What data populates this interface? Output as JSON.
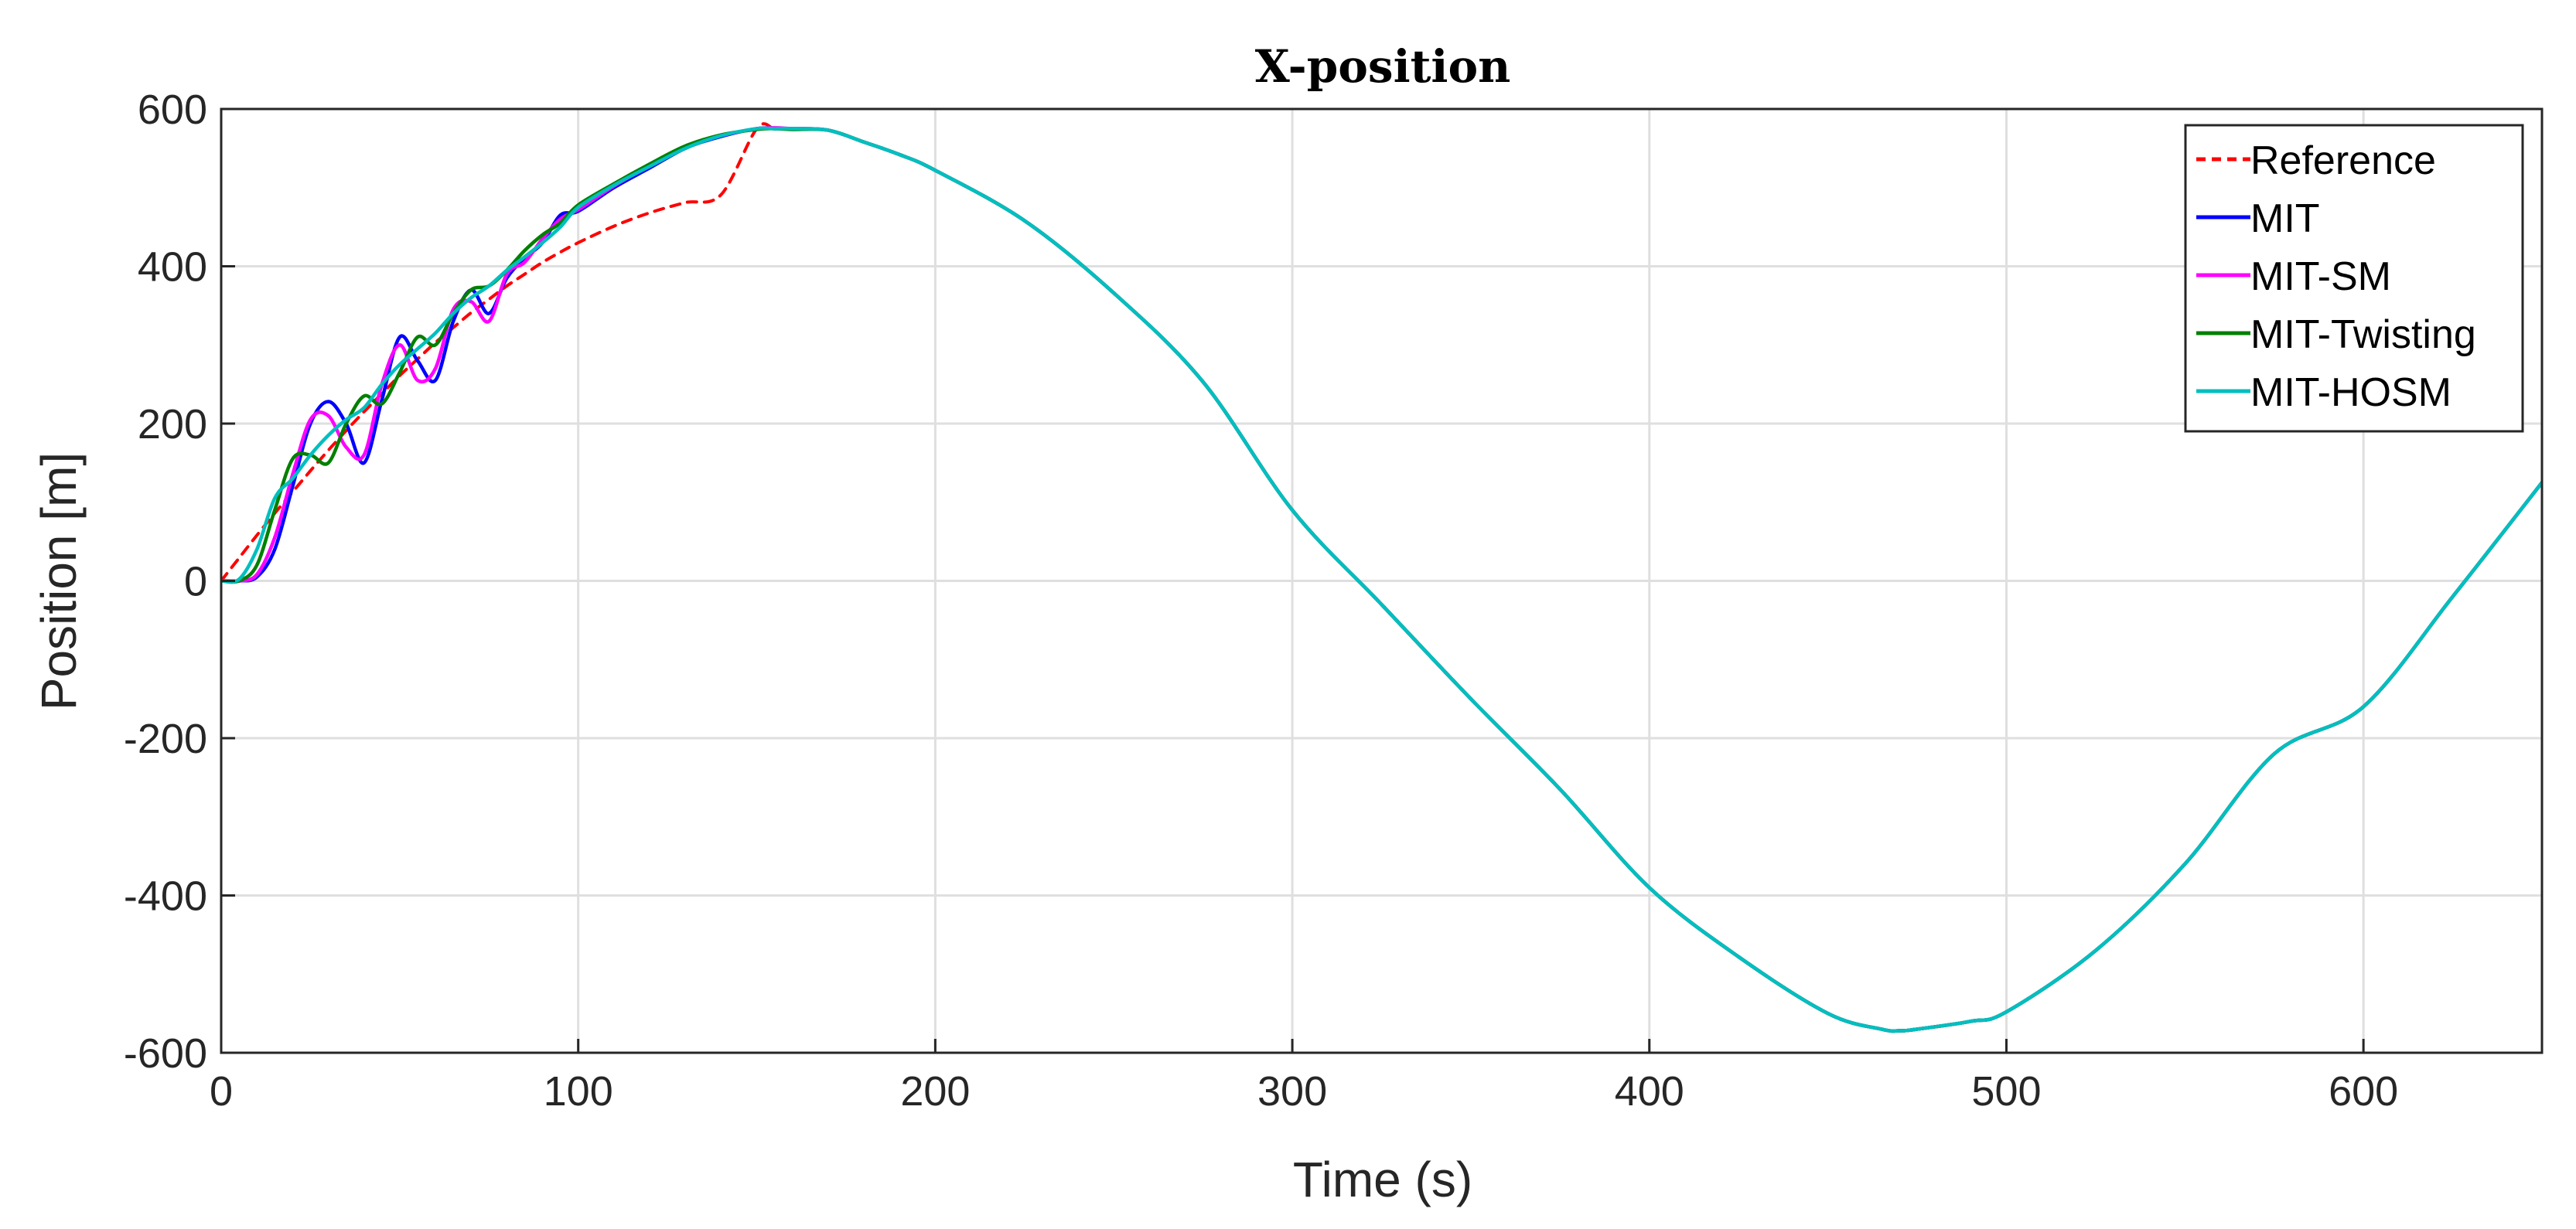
{
  "chart_data": {
    "type": "line",
    "title": "X-position",
    "xlabel": "Time (s)",
    "ylabel": "Position [m]",
    "xlim": [
      0,
      650
    ],
    "ylim": [
      -600,
      600
    ],
    "grid": true,
    "legend_position": "top-right",
    "x_ticks": [
      "0",
      "100",
      "200",
      "300",
      "400",
      "500",
      "600"
    ],
    "y_ticks": [
      "-600",
      "-400",
      "-200",
      "0",
      "200",
      "400",
      "600"
    ],
    "x_tick_values": [
      0,
      100,
      200,
      300,
      400,
      500,
      600
    ],
    "y_tick_values": [
      -600,
      -400,
      -200,
      0,
      200,
      400,
      600
    ],
    "x": [
      0,
      5,
      10,
      15,
      20,
      25,
      30,
      35,
      40,
      45,
      50,
      55,
      60,
      65,
      70,
      75,
      80,
      85,
      90,
      95,
      100,
      110,
      120,
      130,
      140,
      150,
      155,
      160,
      170,
      180,
      190,
      200,
      225,
      250,
      275,
      300,
      325,
      350,
      375,
      400,
      425,
      450,
      465,
      470,
      475,
      490,
      500,
      525,
      550,
      575,
      600,
      625,
      650
    ],
    "series": [
      {
        "name": "Reference",
        "color": "#ff0000",
        "style": "dashed",
        "values": [
          0,
          29,
          58,
          86,
          113,
          140,
          166,
          191,
          215,
          238,
          261,
          282,
          303,
          322,
          341,
          358,
          375,
          390,
          405,
          418,
          430,
          451,
          468,
          481,
          491,
          575,
          575,
          575,
          573,
          558,
          542,
          522,
          458,
          366,
          253,
          90,
          -30,
          -150,
          -265,
          -390,
          -478,
          -550,
          -570,
          -572,
          -570,
          -560,
          -548,
          -470,
          -360,
          -220,
          -160,
          -20,
          125
        ]
      },
      {
        "name": "MIT",
        "color": "#0000ff",
        "style": "solid",
        "values": [
          0,
          0,
          5,
          40,
          120,
          200,
          228,
          200,
          150,
          230,
          310,
          280,
          255,
          330,
          370,
          340,
          385,
          410,
          430,
          465,
          470,
          500,
          525,
          550,
          565,
          575,
          575,
          575,
          573,
          558,
          542,
          522,
          458,
          366,
          253,
          90,
          -30,
          -150,
          -265,
          -390,
          -478,
          -550,
          -570,
          -572,
          -570,
          -560,
          -548,
          -470,
          -360,
          -220,
          -160,
          -20,
          125
        ]
      },
      {
        "name": "MIT-SM",
        "color": "#ff00ff",
        "style": "solid",
        "values": [
          0,
          0,
          8,
          55,
          135,
          205,
          210,
          170,
          160,
          250,
          300,
          255,
          270,
          345,
          355,
          330,
          390,
          405,
          435,
          460,
          472,
          502,
          528,
          552,
          566,
          575,
          576,
          575,
          573,
          558,
          542,
          522,
          458,
          366,
          253,
          90,
          -30,
          -150,
          -265,
          -390,
          -478,
          -550,
          -570,
          -572,
          -570,
          -560,
          -548,
          -470,
          -360,
          -220,
          -160,
          -20,
          125
        ]
      },
      {
        "name": "MIT-Twisting",
        "color": "#008000",
        "style": "solid",
        "values": [
          0,
          0,
          20,
          90,
          155,
          160,
          150,
          200,
          235,
          225,
          265,
          310,
          300,
          340,
          370,
          375,
          395,
          420,
          440,
          455,
          478,
          505,
          530,
          553,
          567,
          574,
          575,
          574,
          573,
          558,
          542,
          522,
          458,
          366,
          253,
          90,
          -30,
          -150,
          -265,
          -390,
          -478,
          -550,
          -570,
          -572,
          -570,
          -560,
          -548,
          -470,
          -360,
          -220,
          -160,
          -20,
          125
        ]
      },
      {
        "name": "MIT-HOSM",
        "color": "#00bfbf",
        "style": "solid",
        "values": [
          0,
          2,
          40,
          105,
          130,
          160,
          185,
          205,
          220,
          250,
          275,
          295,
          315,
          340,
          360,
          375,
          395,
          412,
          430,
          450,
          475,
          503,
          527,
          550,
          566,
          575,
          575,
          575,
          573,
          558,
          542,
          522,
          458,
          366,
          253,
          90,
          -30,
          -150,
          -265,
          -390,
          -478,
          -550,
          -570,
          -572,
          -570,
          -560,
          -548,
          -470,
          -360,
          -220,
          -160,
          -20,
          125
        ]
      }
    ]
  }
}
